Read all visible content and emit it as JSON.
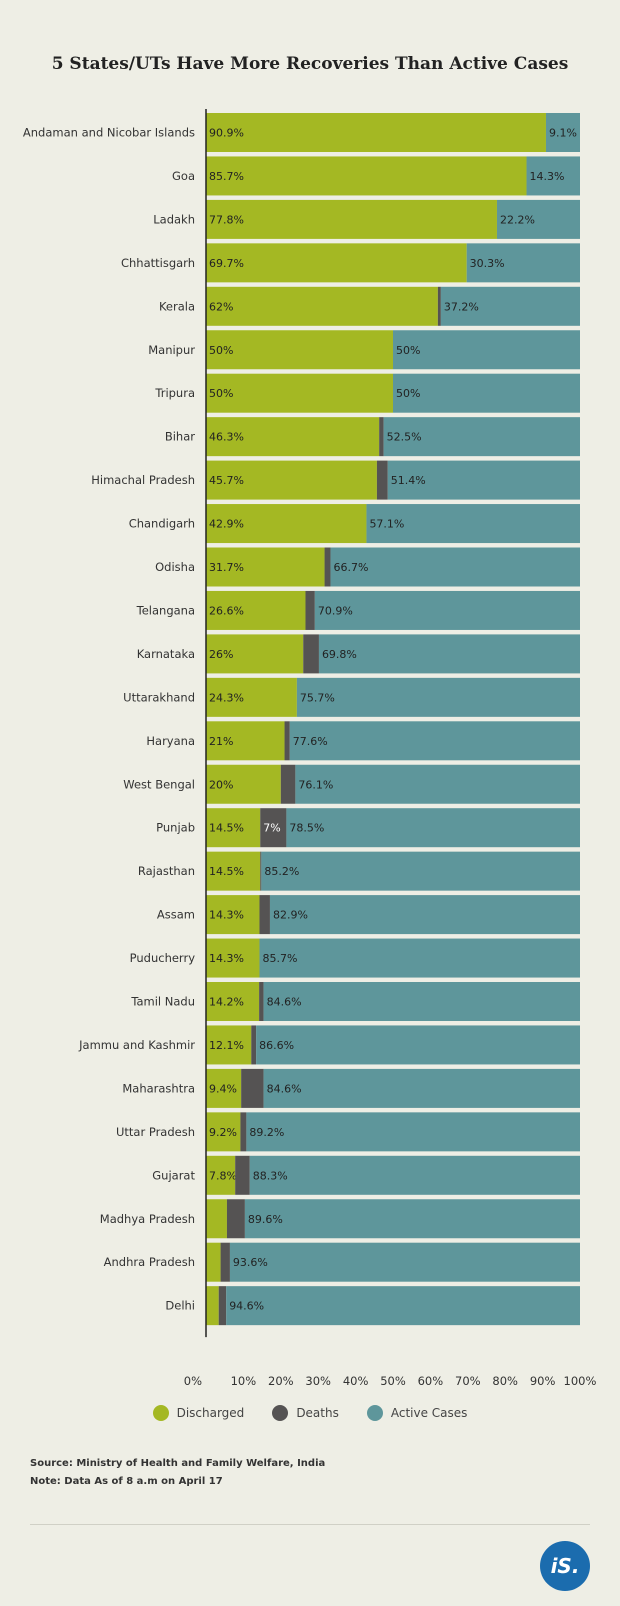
{
  "title": "5 States/UTs Have More Recoveries Than Active Cases",
  "chart_data": {
    "type": "bar",
    "orientation": "horizontal",
    "stacked": true,
    "normalized": true,
    "xlim": [
      0,
      100
    ],
    "x_ticks": [
      "0%",
      "10%",
      "20%",
      "30%",
      "40%",
      "50%",
      "60%",
      "70%",
      "80%",
      "90%",
      "100%"
    ],
    "legend_position": "bottom",
    "series": [
      {
        "name": "Discharged",
        "color": "#a4b823"
      },
      {
        "name": "Deaths",
        "color": "#555353"
      },
      {
        "name": "Active Cases",
        "color": "#5e969b"
      }
    ],
    "rows": [
      {
        "label": "Andaman and Nicobar Islands",
        "discharged": 90.9,
        "deaths": 0,
        "active": 9.1,
        "discharged_label": "90.9%",
        "deaths_label": "",
        "active_label": "9.1%"
      },
      {
        "label": "Goa",
        "discharged": 85.7,
        "deaths": 0,
        "active": 14.3,
        "discharged_label": "85.7%",
        "deaths_label": "",
        "active_label": "14.3%"
      },
      {
        "label": "Ladakh",
        "discharged": 77.8,
        "deaths": 0,
        "active": 22.2,
        "discharged_label": "77.8%",
        "deaths_label": "",
        "active_label": "22.2%"
      },
      {
        "label": "Chhattisgarh",
        "discharged": 69.7,
        "deaths": 0,
        "active": 30.3,
        "discharged_label": "69.7%",
        "deaths_label": "",
        "active_label": "30.3%"
      },
      {
        "label": "Kerala",
        "discharged": 62,
        "deaths": 0.8,
        "active": 37.2,
        "discharged_label": "62%",
        "deaths_label": "",
        "active_label": "37.2%"
      },
      {
        "label": "Manipur",
        "discharged": 50,
        "deaths": 0,
        "active": 50,
        "discharged_label": "50%",
        "deaths_label": "",
        "active_label": "50%"
      },
      {
        "label": "Tripura",
        "discharged": 50,
        "deaths": 0,
        "active": 50,
        "discharged_label": "50%",
        "deaths_label": "",
        "active_label": "50%"
      },
      {
        "label": "Bihar",
        "discharged": 46.3,
        "deaths": 1.2,
        "active": 52.5,
        "discharged_label": "46.3%",
        "deaths_label": "",
        "active_label": "52.5%"
      },
      {
        "label": "Himachal Pradesh",
        "discharged": 45.7,
        "deaths": 2.9,
        "active": 51.4,
        "discharged_label": "45.7%",
        "deaths_label": "",
        "active_label": "51.4%"
      },
      {
        "label": "Chandigarh",
        "discharged": 42.9,
        "deaths": 0,
        "active": 57.1,
        "discharged_label": "42.9%",
        "deaths_label": "",
        "active_label": "57.1%"
      },
      {
        "label": "Odisha",
        "discharged": 31.7,
        "deaths": 1.6,
        "active": 66.7,
        "discharged_label": "31.7%",
        "deaths_label": "",
        "active_label": "66.7%"
      },
      {
        "label": "Telangana",
        "discharged": 26.6,
        "deaths": 2.5,
        "active": 70.9,
        "discharged_label": "26.6%",
        "deaths_label": "",
        "active_label": "70.9%"
      },
      {
        "label": "Karnataka",
        "discharged": 26,
        "deaths": 4.2,
        "active": 69.8,
        "discharged_label": "26%",
        "deaths_label": "",
        "active_label": "69.8%"
      },
      {
        "label": "Uttarakhand",
        "discharged": 24.3,
        "deaths": 0,
        "active": 75.7,
        "discharged_label": "24.3%",
        "deaths_label": "",
        "active_label": "75.7%"
      },
      {
        "label": "Haryana",
        "discharged": 21,
        "deaths": 1.4,
        "active": 77.6,
        "discharged_label": "21%",
        "deaths_label": "",
        "active_label": "77.6%"
      },
      {
        "label": "West Bengal",
        "discharged": 20,
        "deaths": 3.9,
        "active": 76.1,
        "discharged_label": "20%",
        "deaths_label": "",
        "active_label": "76.1%"
      },
      {
        "label": "Punjab",
        "discharged": 14.5,
        "deaths": 7,
        "active": 78.5,
        "discharged_label": "14.5%",
        "deaths_label": "7%",
        "active_label": "78.5%"
      },
      {
        "label": "Rajasthan",
        "discharged": 14.5,
        "deaths": 0.3,
        "active": 85.2,
        "discharged_label": "14.5%",
        "deaths_label": "",
        "active_label": "85.2%"
      },
      {
        "label": "Assam",
        "discharged": 14.3,
        "deaths": 2.8,
        "active": 82.9,
        "discharged_label": "14.3%",
        "deaths_label": "",
        "active_label": "82.9%"
      },
      {
        "label": "Puducherry",
        "discharged": 14.3,
        "deaths": 0,
        "active": 85.7,
        "discharged_label": "14.3%",
        "deaths_label": "",
        "active_label": "85.7%"
      },
      {
        "label": "Tamil Nadu",
        "discharged": 14.2,
        "deaths": 1.2,
        "active": 84.6,
        "discharged_label": "14.2%",
        "deaths_label": "",
        "active_label": "84.6%"
      },
      {
        "label": "Jammu and Kashmir",
        "discharged": 12.1,
        "deaths": 1.3,
        "active": 86.6,
        "discharged_label": "12.1%",
        "deaths_label": "",
        "active_label": "86.6%"
      },
      {
        "label": "Maharashtra",
        "discharged": 9.4,
        "deaths": 6,
        "active": 84.6,
        "discharged_label": "9.4%",
        "deaths_label": "",
        "active_label": "84.6%"
      },
      {
        "label": "Uttar Pradesh",
        "discharged": 9.2,
        "deaths": 1.6,
        "active": 89.2,
        "discharged_label": "9.2%",
        "deaths_label": "",
        "active_label": "89.2%"
      },
      {
        "label": "Gujarat",
        "discharged": 7.8,
        "deaths": 3.9,
        "active": 88.3,
        "discharged_label": "7.8%",
        "deaths_label": "",
        "active_label": "88.3%"
      },
      {
        "label": "Madhya Pradesh",
        "discharged": 5.6,
        "deaths": 4.8,
        "active": 89.6,
        "discharged_label": "",
        "deaths_label": "",
        "active_label": "89.6%"
      },
      {
        "label": "Andhra Pradesh",
        "discharged": 3.9,
        "deaths": 2.5,
        "active": 93.6,
        "discharged_label": "",
        "deaths_label": "",
        "active_label": "93.6%"
      },
      {
        "label": "Delhi",
        "discharged": 3.4,
        "deaths": 2,
        "active": 94.6,
        "discharged_label": "",
        "deaths_label": "",
        "active_label": "94.6%"
      }
    ]
  },
  "legend": {
    "discharged": "Discharged",
    "deaths": "Deaths",
    "active": "Active Cases"
  },
  "source": "Source: Ministry of Health and Family Welfare, India",
  "note": "Note: Data As of 8 a.m on April 17",
  "logo_text": "iS."
}
